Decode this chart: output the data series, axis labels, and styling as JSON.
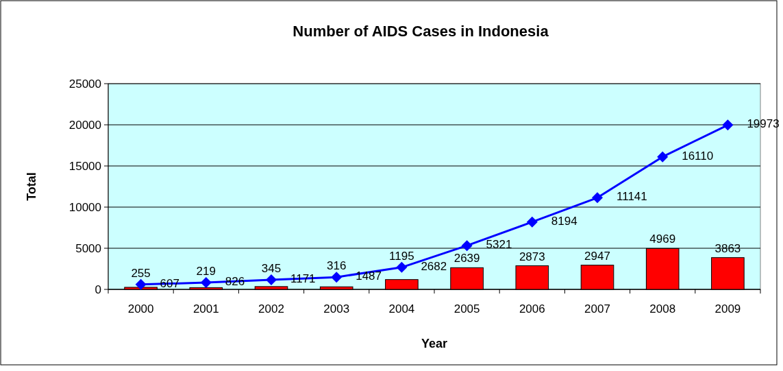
{
  "chart_data": {
    "title": "Number of AIDS Cases in Indonesia",
    "xlabel": "Year",
    "ylabel": "Total",
    "categories": [
      "2000",
      "2001",
      "2002",
      "2003",
      "2004",
      "2005",
      "2006",
      "2007",
      "2008",
      "2009"
    ],
    "series": [
      {
        "color": "#ff0000",
        "values": [
          255,
          219,
          345,
          316,
          1195,
          2639,
          2873,
          2947,
          4969,
          3863
        ]
      },
      {
        "type": "line",
        "color": "#0000ff",
        "values": [
          607,
          826,
          1171,
          1487,
          2682,
          5321,
          8194,
          11141,
          16110,
          19973
        ]
      }
    ],
    "ylim": [
      0,
      25000
    ],
    "type": "bar",
    "yticks": [
      0,
      5000,
      10000,
      15000,
      20000,
      25000
    ],
    "grid": "y",
    "data_labels": true,
    "marker": "diamond",
    "line_style": "solid"
  }
}
